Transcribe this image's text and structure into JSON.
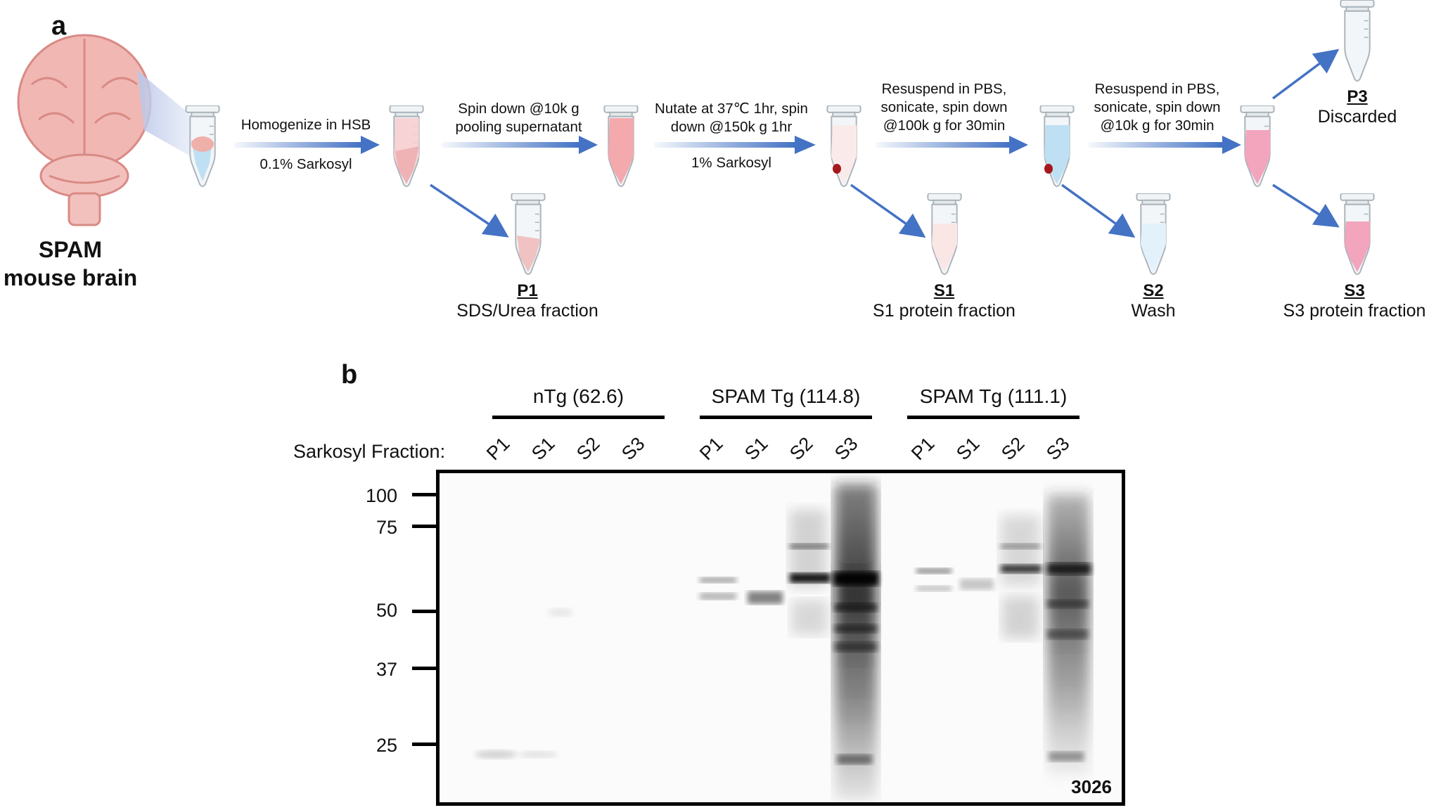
{
  "panel_a": {
    "letter": "a",
    "brain_label_line1": "SPAM",
    "brain_label_line2": "mouse brain",
    "steps": [
      {
        "above": "Homogenize in HSB",
        "below": "0.1% Sarkosyl"
      },
      {
        "above_line1": "Spin down @10k g",
        "above_line2": "pooling supernatant"
      },
      {
        "above_line1": "Nutate at 37℃ 1hr, spin",
        "above_line2": "down @150k g 1hr",
        "below": "1% Sarkosyl"
      },
      {
        "above_line1": "Resuspend in PBS,",
        "above_line2": "sonicate, spin down",
        "above_line3": "@100k g for 30min"
      },
      {
        "above_line1": "Resuspend in PBS,",
        "above_line2": "sonicate, spin down",
        "above_line3": "@10k g for 30min"
      }
    ],
    "fractions": [
      {
        "code": "P1",
        "desc": "SDS/Urea fraction"
      },
      {
        "code": "S1",
        "desc": "S1 protein fraction"
      },
      {
        "code": "S2",
        "desc": "Wash"
      },
      {
        "code": "S3",
        "desc": "S3 protein fraction"
      },
      {
        "code": "P3",
        "desc": "Discarded"
      }
    ]
  },
  "panel_b": {
    "letter": "b",
    "groups": [
      "nTg (62.6)",
      "SPAM Tg (114.8)",
      "SPAM Tg (111.1)"
    ],
    "sarkosyl_label": "Sarkosyl Fraction:",
    "lanes": [
      "P1",
      "S1",
      "S2",
      "S3",
      "P1",
      "S1",
      "S2",
      "S3",
      "P1",
      "S1",
      "S2",
      "S3"
    ],
    "mw_markers": [
      "100",
      "75",
      "50",
      "37",
      "25"
    ],
    "blot_id": "3026",
    "colors": {
      "arrow": "#4472c4",
      "blot_border": "#000000"
    }
  }
}
